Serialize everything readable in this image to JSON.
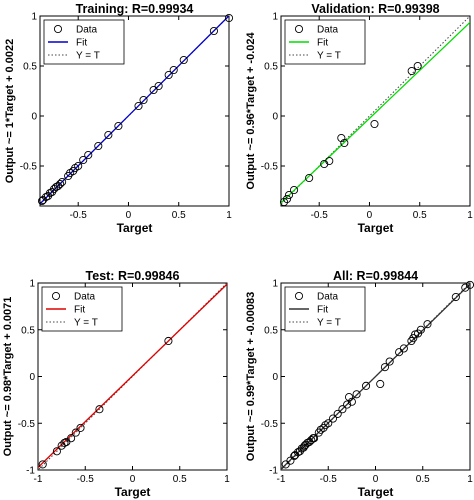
{
  "figure": {
    "panels": [
      {
        "title": "Training: R=0.99934",
        "xlabel": "Target",
        "ylabel": "Output ~= 1*Target + 0.0022",
        "fit_color": "#0000cc",
        "xticks": [
          "-0.5",
          "0",
          "0.5",
          "1"
        ],
        "yticks": [
          "-0.5",
          "0",
          "0.5",
          "1"
        ],
        "legend": [
          "Data",
          "Fit",
          "Y = T"
        ]
      },
      {
        "title": "Validation: R=0.99398",
        "xlabel": "Target",
        "ylabel": "Output ~= 0.96*Target + -0.024",
        "fit_color": "#00dd00",
        "xticks": [
          "-0.5",
          "0",
          "0.5",
          "1"
        ],
        "yticks": [
          "-0.5",
          "0",
          "0.5",
          "1"
        ],
        "legend": [
          "Data",
          "Fit",
          "Y = T"
        ]
      },
      {
        "title": "Test: R=0.99846",
        "xlabel": "Target",
        "ylabel": "Output ~= 0.98*Target + 0.0071",
        "fit_color": "#dd0000",
        "xticks": [
          "-1",
          "-0.5",
          "0",
          "0.5",
          "1"
        ],
        "yticks": [
          "-1",
          "-0.5",
          "0",
          "0.5",
          "1"
        ],
        "legend": [
          "Data",
          "Fit",
          "Y = T"
        ]
      },
      {
        "title": "All: R=0.99844",
        "xlabel": "Target",
        "ylabel": "Output ~= 0.99*Target + -0.00083",
        "fit_color": "#333333",
        "xticks": [
          "-1",
          "-0.5",
          "0",
          "0.5",
          "1"
        ],
        "yticks": [
          "-1",
          "-0.5",
          "0",
          "0.5",
          "1"
        ],
        "legend": [
          "Data",
          "Fit",
          "Y = T"
        ]
      }
    ]
  },
  "chart_data": [
    {
      "type": "scatter",
      "title": "Training: R=0.99934",
      "xlabel": "Target",
      "ylabel": "Output ~= 1*Target + 0.0022",
      "xlim": [
        -0.88,
        1.0
      ],
      "ylim": [
        -0.9,
        1.0
      ],
      "fit": {
        "slope": 1.0,
        "intercept": 0.0022
      },
      "legend": [
        "Data",
        "Fit",
        "Y = T"
      ],
      "legend_position": "top-left",
      "grid": false,
      "series": [
        {
          "name": "Data",
          "x": [
            -0.86,
            -0.85,
            -0.82,
            -0.8,
            -0.78,
            -0.76,
            -0.74,
            -0.72,
            -0.7,
            -0.68,
            -0.66,
            -0.6,
            -0.58,
            -0.55,
            -0.53,
            -0.5,
            -0.45,
            -0.4,
            -0.3,
            -0.2,
            -0.1,
            0.1,
            0.15,
            0.25,
            0.3,
            0.4,
            0.45,
            0.55,
            0.85,
            1.0
          ],
          "y": [
            -0.85,
            -0.84,
            -0.81,
            -0.8,
            -0.77,
            -0.76,
            -0.73,
            -0.71,
            -0.7,
            -0.68,
            -0.66,
            -0.6,
            -0.57,
            -0.55,
            -0.52,
            -0.5,
            -0.44,
            -0.39,
            -0.3,
            -0.19,
            -0.1,
            0.1,
            0.16,
            0.26,
            0.3,
            0.41,
            0.46,
            0.56,
            0.85,
            0.98
          ]
        }
      ]
    },
    {
      "type": "scatter",
      "title": "Validation: R=0.99398",
      "xlabel": "Target",
      "ylabel": "Output ~= 0.96*Target + -0.024",
      "xlim": [
        -0.88,
        1.0
      ],
      "ylim": [
        -0.9,
        1.0
      ],
      "fit": {
        "slope": 0.96,
        "intercept": -0.024
      },
      "legend": [
        "Data",
        "Fit",
        "Y = T"
      ],
      "legend_position": "top-left",
      "grid": false,
      "series": [
        {
          "name": "Data",
          "x": [
            -0.85,
            -0.82,
            -0.8,
            -0.75,
            -0.6,
            -0.45,
            -0.4,
            -0.28,
            -0.25,
            0.05,
            0.42,
            0.48
          ],
          "y": [
            -0.86,
            -0.83,
            -0.79,
            -0.74,
            -0.62,
            -0.48,
            -0.45,
            -0.22,
            -0.27,
            -0.08,
            0.45,
            0.5
          ]
        }
      ]
    },
    {
      "type": "scatter",
      "title": "Test: R=0.99846",
      "xlabel": "Target",
      "ylabel": "Output ~= 0.98*Target + 0.0071",
      "xlim": [
        -1.0,
        1.0
      ],
      "ylim": [
        -1.0,
        1.0
      ],
      "fit": {
        "slope": 0.98,
        "intercept": 0.0071
      },
      "legend": [
        "Data",
        "Fit",
        "Y = T"
      ],
      "legend_position": "top-left",
      "grid": false,
      "series": [
        {
          "name": "Data",
          "x": [
            -0.95,
            -0.8,
            -0.75,
            -0.72,
            -0.7,
            -0.65,
            -0.6,
            -0.55,
            -0.35,
            0.38
          ],
          "y": [
            -0.94,
            -0.8,
            -0.74,
            -0.71,
            -0.7,
            -0.66,
            -0.6,
            -0.55,
            -0.35,
            0.38
          ]
        }
      ]
    },
    {
      "type": "scatter",
      "title": "All: R=0.99844",
      "xlabel": "Target",
      "ylabel": "Output ~= 0.99*Target + -0.00083",
      "xlim": [
        -1.0,
        1.0
      ],
      "ylim": [
        -1.0,
        1.0
      ],
      "fit": {
        "slope": 0.99,
        "intercept": -0.00083
      },
      "legend": [
        "Data",
        "Fit",
        "Y = T"
      ],
      "legend_position": "top-left",
      "grid": false,
      "series": [
        {
          "name": "Data",
          "x": [
            -0.95,
            -0.9,
            -0.86,
            -0.85,
            -0.82,
            -0.8,
            -0.78,
            -0.76,
            -0.75,
            -0.74,
            -0.72,
            -0.7,
            -0.68,
            -0.66,
            -0.65,
            -0.6,
            -0.58,
            -0.55,
            -0.53,
            -0.5,
            -0.45,
            -0.4,
            -0.35,
            -0.3,
            -0.28,
            -0.25,
            -0.2,
            -0.1,
            0.05,
            0.1,
            0.15,
            0.25,
            0.3,
            0.38,
            0.4,
            0.42,
            0.45,
            0.48,
            0.55,
            0.85,
            0.95,
            1.0
          ],
          "y": [
            -0.94,
            -0.9,
            -0.85,
            -0.84,
            -0.81,
            -0.8,
            -0.77,
            -0.76,
            -0.74,
            -0.73,
            -0.71,
            -0.7,
            -0.68,
            -0.66,
            -0.66,
            -0.6,
            -0.57,
            -0.55,
            -0.52,
            -0.5,
            -0.45,
            -0.4,
            -0.35,
            -0.3,
            -0.22,
            -0.27,
            -0.19,
            -0.1,
            -0.08,
            0.1,
            0.16,
            0.26,
            0.3,
            0.38,
            0.41,
            0.45,
            0.46,
            0.5,
            0.56,
            0.85,
            0.95,
            0.98
          ]
        }
      ]
    }
  ]
}
